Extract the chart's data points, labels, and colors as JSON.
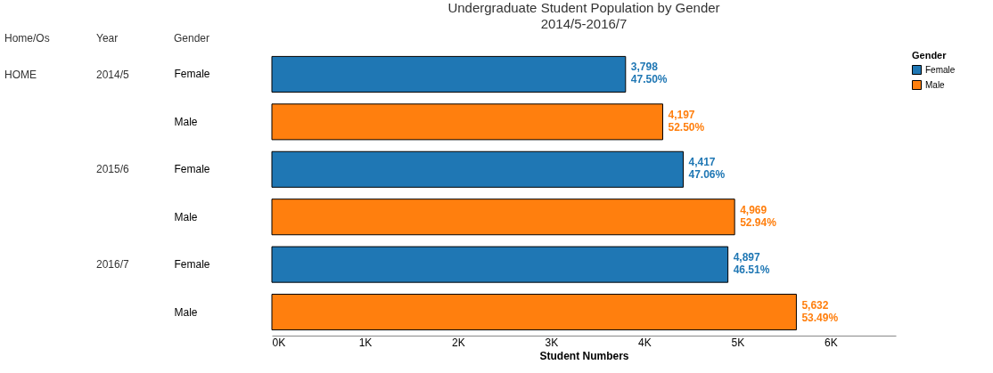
{
  "chart_data": {
    "type": "bar",
    "orientation": "horizontal",
    "title": "Undergraduate Student Population by Gender",
    "subtitle": "2014/5-2016/7",
    "categories": [
      "Female",
      "Male",
      "Female",
      "Male",
      "Female",
      "Male"
    ],
    "series": [
      {
        "name": "Female",
        "color": "#1f77b4",
        "values": [
          3798,
          null,
          4417,
          null,
          4897,
          null
        ],
        "value_labels": [
          "3,798\n47.50%",
          null,
          "4,417\n47.06%",
          null,
          "4,897\n46.51%",
          null
        ]
      },
      {
        "name": "Male",
        "color": "#ff7f0e",
        "values": [
          null,
          4197,
          null,
          4969,
          null,
          5632
        ],
        "value_labels": [
          null,
          "4,197\n52.50%",
          null,
          "4,969\n52.94%",
          null,
          "5,632\n53.49%"
        ]
      }
    ],
    "xlabel": "Student Numbers",
    "legend_title": "Gender",
    "legend": "top right",
    "xlim": [
      0,
      6700
    ],
    "xticks": [
      {
        "value": 0,
        "label": "0K"
      },
      {
        "value": 1000,
        "label": "1K"
      },
      {
        "value": 2000,
        "label": "2K"
      },
      {
        "value": 3000,
        "label": "3K"
      },
      {
        "value": 4000,
        "label": "4K"
      },
      {
        "value": 5000,
        "label": "5K"
      },
      {
        "value": 6000,
        "label": "6K"
      }
    ],
    "annotations": [
      "Home/Os",
      "Year",
      "Gender",
      "HOME",
      "2014/5",
      "2015/6",
      "2016/7"
    ],
    "grid": false
  }
}
